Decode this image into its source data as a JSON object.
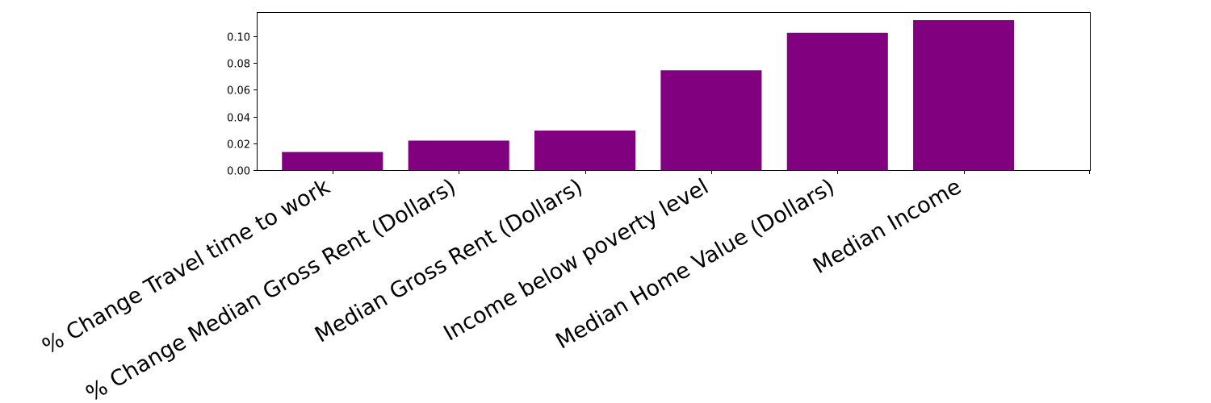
{
  "chart_data": {
    "type": "bar",
    "title": "",
    "xlabel": "",
    "ylabel": "",
    "categories": [
      "% Change Travel time to work",
      "% Change Median Gross Rent (Dollars)",
      "Median Gross Rent (Dollars)",
      "Income below poverty level",
      "Median Home Value (Dollars)",
      "Median Income"
    ],
    "values": [
      0.0135,
      0.022,
      0.0295,
      0.0745,
      0.1025,
      0.112
    ],
    "ylim": [
      0,
      0.118
    ],
    "xlim": [
      -0.6,
      6
    ],
    "yticks": [
      0.0,
      0.02,
      0.04,
      0.06,
      0.08,
      0.1
    ],
    "ytick_labels": [
      "0.00",
      "0.02",
      "0.04",
      "0.06",
      "0.08",
      "0.10"
    ],
    "extra_xtick_positions": [
      6
    ],
    "bar_color": "#800080",
    "grid": false,
    "legend": "none"
  }
}
